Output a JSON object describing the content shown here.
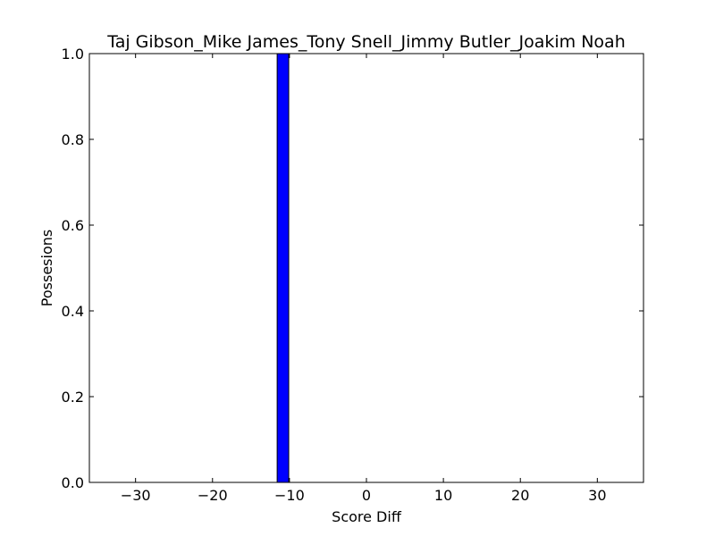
{
  "chart_data": {
    "type": "bar",
    "title": "Taj Gibson_Mike James_Tony Snell_Jimmy Butler_Joakim Noah",
    "xlabel": "Score Diff",
    "ylabel": "Possesions",
    "xlim": [
      -36,
      36
    ],
    "ylim": [
      0,
      1
    ],
    "x_ticks": [
      -30,
      -20,
      -10,
      0,
      10,
      20,
      30
    ],
    "x_tick_labels": [
      "−30",
      "−20",
      "−10",
      "0",
      "10",
      "20",
      "30"
    ],
    "y_ticks": [
      0,
      0.2,
      0.4,
      0.6,
      0.8,
      1.0
    ],
    "y_tick_labels": [
      "0.0",
      "0.2",
      "0.4",
      "0.6",
      "0.8",
      "1.0"
    ],
    "bars": [
      {
        "x_start": -11.6,
        "x_end": -10.1,
        "value": 1.0
      }
    ],
    "bar_color": "#0000ff",
    "grid": false
  }
}
